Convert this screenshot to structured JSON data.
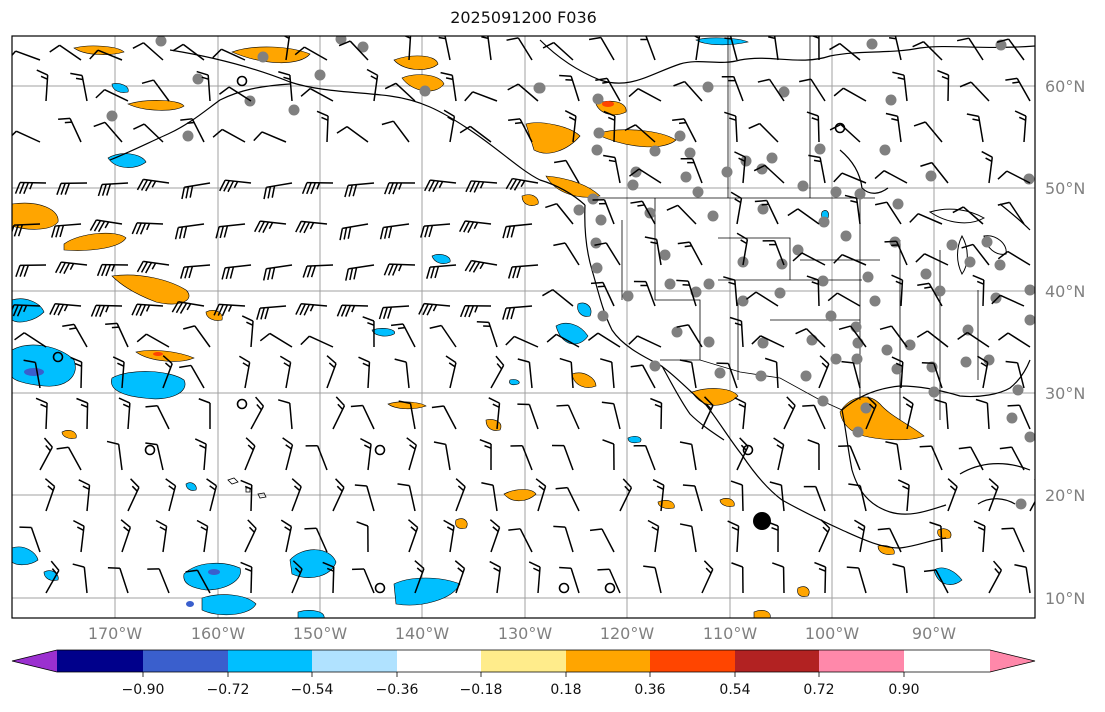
{
  "title": "2025091200 F036",
  "lat_labels": [
    "60°N",
    "50°N",
    "40°N",
    "30°N",
    "20°N",
    "10°N"
  ],
  "lon_labels": [
    "170°W",
    "160°W",
    "150°W",
    "140°W",
    "130°W",
    "120°W",
    "110°W",
    "100°W",
    "90°W"
  ],
  "colorbar": {
    "ticks": [
      "−0.90",
      "−0.72",
      "−0.54",
      "−0.36",
      "−0.18",
      "0.18",
      "0.36",
      "0.54",
      "0.72",
      "0.90"
    ],
    "colors": [
      "#9b30d0",
      "#00008b",
      "#3a5fcd",
      "#00bfff",
      "#b0e2ff",
      "#ffffff",
      "#ffec8b",
      "#ffa500",
      "#ff4500",
      "#b22222",
      "#ff88aa"
    ]
  },
  "style": {
    "land_outline": "#000000",
    "grid": "#a0a0a0",
    "station_marker": "#808080",
    "barb": "#000000"
  }
}
